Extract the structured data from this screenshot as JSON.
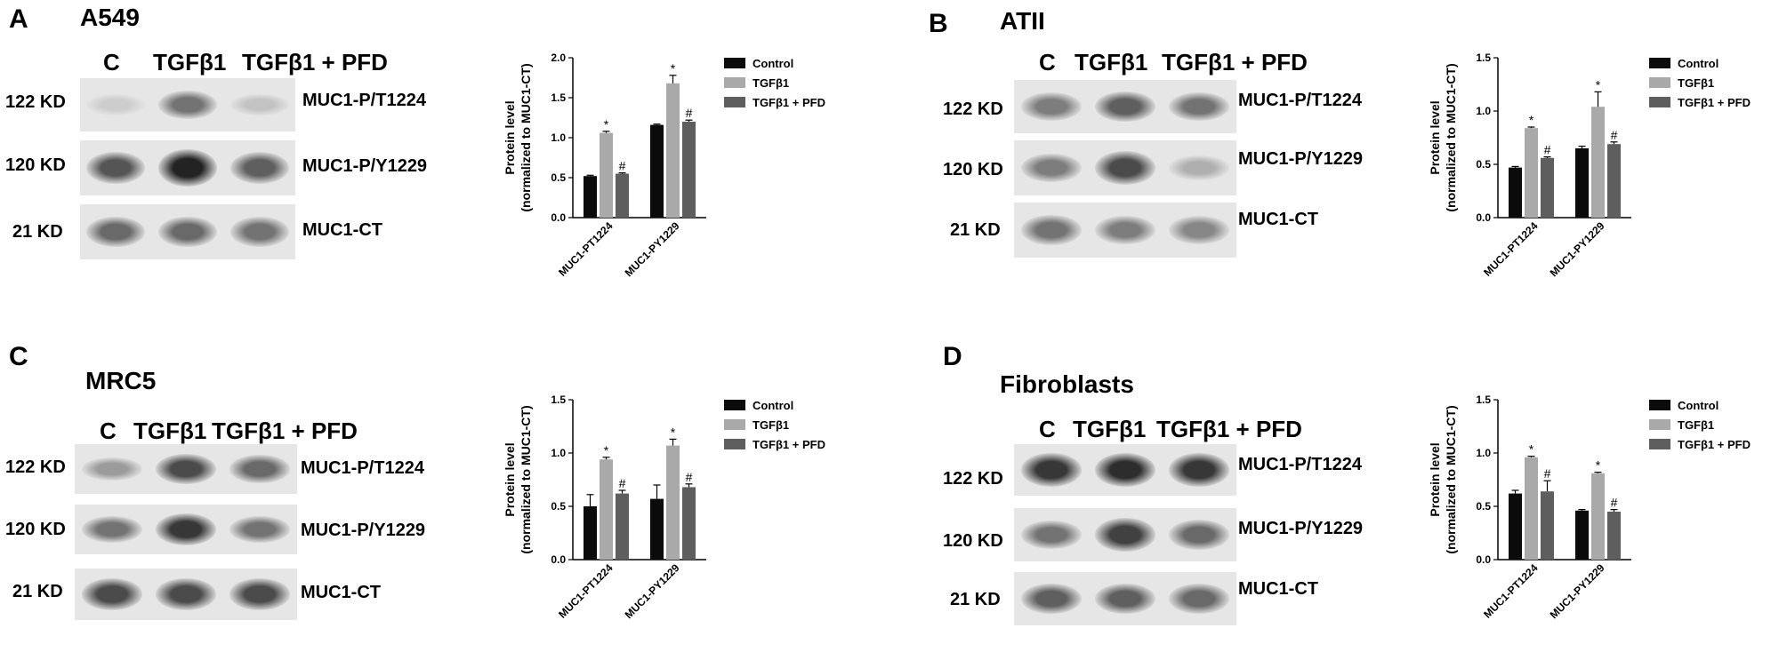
{
  "colors": {
    "control": "#0b0b0b",
    "tgf": "#a9a9a9",
    "tgf_pfd": "#5e5e5e",
    "axis": "#000000",
    "blot_bg": "#e6e6e6"
  },
  "panels": {
    "A": {
      "letter": "A",
      "cell": "A549",
      "lanes": [
        "C",
        "TGFβ1",
        "TGFβ1 + PFD"
      ],
      "blots": [
        {
          "kd": "122 KD",
          "target": "MUC1-P/T1224",
          "intensity": [
            0.1,
            0.55,
            0.15
          ]
        },
        {
          "kd": "120 KD",
          "target": "MUC1-P/Y1229",
          "intensity": [
            0.7,
            0.95,
            0.65
          ]
        },
        {
          "kd": "21 KD",
          "target": "MUC1-CT",
          "intensity": [
            0.6,
            0.6,
            0.55
          ]
        }
      ]
    },
    "B": {
      "letter": "B",
      "cell": "ATII",
      "lanes": [
        "C",
        "TGFβ1",
        "TGFβ1 + PFD"
      ],
      "blots": [
        {
          "kd": "122 KD",
          "target": "MUC1-P/T1224",
          "intensity": [
            0.5,
            0.65,
            0.55
          ]
        },
        {
          "kd": "120 KD",
          "target": "MUC1-P/Y1229",
          "intensity": [
            0.5,
            0.75,
            0.25
          ]
        },
        {
          "kd": "21 KD",
          "target": "MUC1-CT",
          "intensity": [
            0.55,
            0.5,
            0.45
          ]
        }
      ]
    },
    "C": {
      "letter": "C",
      "cell": "MRC5",
      "lanes": [
        "C",
        "TGFβ1",
        "TGFβ1 + PFD"
      ],
      "blots": [
        {
          "kd": "122 KD",
          "target": "MUC1-P/T1224",
          "intensity": [
            0.35,
            0.75,
            0.6
          ]
        },
        {
          "kd": "120 KD",
          "target": "MUC1-P/Y1229",
          "intensity": [
            0.55,
            0.85,
            0.55
          ]
        },
        {
          "kd": "21 KD",
          "target": "MUC1-CT",
          "intensity": [
            0.75,
            0.75,
            0.75
          ]
        }
      ]
    },
    "D": {
      "letter": "D",
      "cell": "Fibroblasts",
      "lanes": [
        "C",
        "TGFβ1",
        "TGFβ1 + PFD"
      ],
      "blots": [
        {
          "kd": "122 KD",
          "target": "MUC1-P/T1224",
          "intensity": [
            0.85,
            0.9,
            0.85
          ]
        },
        {
          "kd": "120 KD",
          "target": "MUC1-P/Y1229",
          "intensity": [
            0.55,
            0.8,
            0.6
          ]
        },
        {
          "kd": "21 KD",
          "target": "MUC1-CT",
          "intensity": [
            0.65,
            0.65,
            0.6
          ]
        }
      ]
    }
  },
  "chart_data": [
    {
      "panel": "A",
      "type": "bar",
      "categories": [
        "MUC1-PT1224",
        "MUC1-PY1229"
      ],
      "series": [
        {
          "name": "Control",
          "values": [
            0.52,
            1.16
          ],
          "errors": [
            0.01,
            0.01
          ],
          "marks": [
            "",
            ""
          ]
        },
        {
          "name": "TGFβ1",
          "values": [
            1.06,
            1.68
          ],
          "errors": [
            0.02,
            0.1
          ],
          "marks": [
            "*",
            "*"
          ]
        },
        {
          "name": "TGFβ1 + PFD",
          "values": [
            0.55,
            1.2
          ],
          "errors": [
            0.01,
            0.02
          ],
          "marks": [
            "#",
            "#"
          ]
        }
      ],
      "ylabel_line1": "Protein level",
      "ylabel_line2": "(normalized to  MUC1-CT)",
      "ylim": [
        0,
        2.0
      ],
      "yticks": [
        "0.0",
        "0.5",
        "1.0",
        "1.5",
        "2.0"
      ],
      "ytick_values": [
        0,
        0.5,
        1.0,
        1.5,
        2.0
      ],
      "legend_position": "top-right"
    },
    {
      "panel": "B",
      "type": "bar",
      "categories": [
        "MUC1-PT1224",
        "MUC1-PY1229"
      ],
      "series": [
        {
          "name": "Control",
          "values": [
            0.47,
            0.65
          ],
          "errors": [
            0.01,
            0.02
          ],
          "marks": [
            "",
            ""
          ]
        },
        {
          "name": "TGFβ1",
          "values": [
            0.84,
            1.04
          ],
          "errors": [
            0.01,
            0.14
          ],
          "marks": [
            "*",
            "*"
          ]
        },
        {
          "name": "TGFβ1 + PFD",
          "values": [
            0.56,
            0.69
          ],
          "errors": [
            0.01,
            0.02
          ],
          "marks": [
            "#",
            "#"
          ]
        }
      ],
      "ylabel_line1": "Protein level",
      "ylabel_line2": "(normalized to MUC1-CT)",
      "ylim": [
        0,
        1.5
      ],
      "yticks": [
        "0.0",
        "0.5",
        "1.0",
        "1.5"
      ],
      "ytick_values": [
        0,
        0.5,
        1.0,
        1.5
      ],
      "legend_position": "top-right"
    },
    {
      "panel": "C",
      "type": "bar",
      "categories": [
        "MUC1-PT1224",
        "MUC1-PY1229"
      ],
      "series": [
        {
          "name": "Control",
          "values": [
            0.5,
            0.57
          ],
          "errors": [
            0.11,
            0.13
          ],
          "marks": [
            "",
            ""
          ]
        },
        {
          "name": "TGFβ1",
          "values": [
            0.94,
            1.07
          ],
          "errors": [
            0.02,
            0.06
          ],
          "marks": [
            "*",
            "*"
          ]
        },
        {
          "name": "TGFβ1 + PFD",
          "values": [
            0.62,
            0.68
          ],
          "errors": [
            0.03,
            0.03
          ],
          "marks": [
            "#",
            "#"
          ]
        }
      ],
      "ylabel_line1": "Protein level",
      "ylabel_line2": "(normalized to MUC1-CT)",
      "ylim": [
        0,
        1.5
      ],
      "yticks": [
        "0.0",
        "0.5",
        "1.0",
        "1.5"
      ],
      "ytick_values": [
        0,
        0.5,
        1.0,
        1.5
      ],
      "legend_position": "top-right"
    },
    {
      "panel": "D",
      "type": "bar",
      "categories": [
        "MUC1-PT1224",
        "MUC1-PY1229"
      ],
      "series": [
        {
          "name": "Control",
          "values": [
            0.62,
            0.46
          ],
          "errors": [
            0.03,
            0.01
          ],
          "marks": [
            "",
            ""
          ]
        },
        {
          "name": "TGFβ1",
          "values": [
            0.96,
            0.81
          ],
          "errors": [
            0.01,
            0.01
          ],
          "marks": [
            "*",
            "*"
          ]
        },
        {
          "name": "TGFβ1 + PFD",
          "values": [
            0.64,
            0.45
          ],
          "errors": [
            0.1,
            0.02
          ],
          "marks": [
            "#",
            "#"
          ]
        }
      ],
      "ylabel_line1": "Protein level",
      "ylabel_line2": "(normalized to MUC1-CT)",
      "ylim": [
        0,
        1.5
      ],
      "yticks": [
        "0.0",
        "0.5",
        "1.0",
        "1.5"
      ],
      "ytick_values": [
        0,
        0.5,
        1.0,
        1.5
      ],
      "legend_position": "top-right"
    }
  ]
}
